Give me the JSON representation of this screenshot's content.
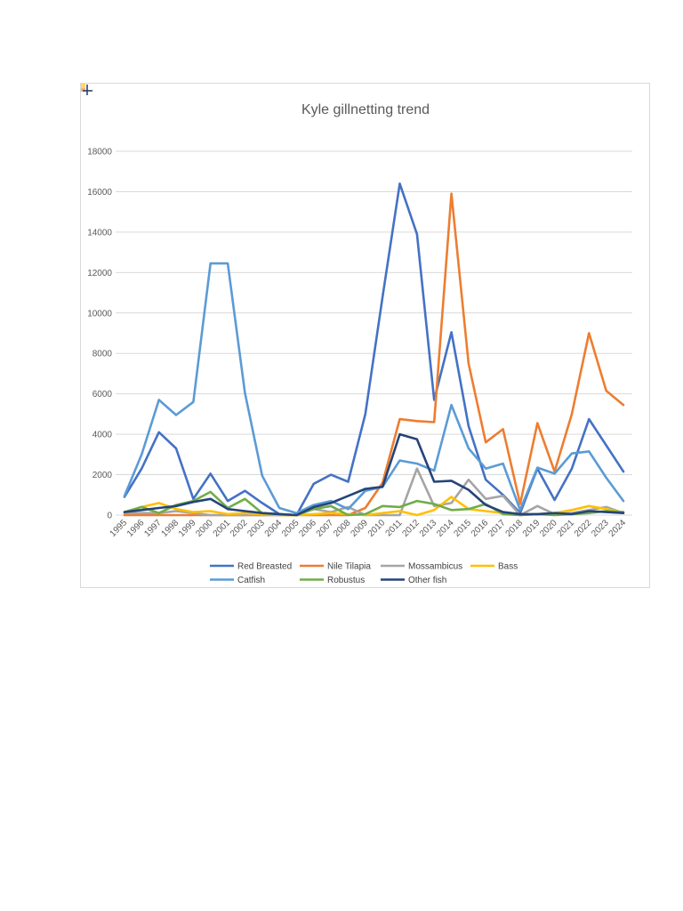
{
  "chart_data": {
    "type": "line",
    "title": "Kyle gillnetting trend",
    "xlabel": "",
    "ylabel": "",
    "ylim": [
      0,
      18000
    ],
    "yticks": [
      0,
      2000,
      4000,
      6000,
      8000,
      10000,
      12000,
      14000,
      16000,
      18000
    ],
    "grid": true,
    "legend_position": "bottom",
    "categories": [
      "1995",
      "1996",
      "1997",
      "1998",
      "1999",
      "2000",
      "2001",
      "2002",
      "2003",
      "2004",
      "2005",
      "2006",
      "2007",
      "2008",
      "2009",
      "2010",
      "2011",
      "2012",
      "2013",
      "2014",
      "2015",
      "2016",
      "2017",
      "2018",
      "2019",
      "2020",
      "2021",
      "2022",
      "2023",
      "2024"
    ],
    "series": [
      {
        "name": "Red Breasted",
        "color": "#4472c4",
        "values": [
          900,
          2300,
          4100,
          3300,
          800,
          2050,
          700,
          1200,
          600,
          50,
          0,
          1550,
          2000,
          1650,
          5000,
          10800,
          16400,
          13900,
          5700,
          9050,
          4400,
          1750,
          1000,
          100,
          2300,
          750,
          2300,
          4750,
          3450,
          2150
        ]
      },
      {
        "name": "Nile Tilapia",
        "color": "#ed7d31",
        "values": [
          0,
          0,
          0,
          0,
          0,
          0,
          0,
          0,
          0,
          0,
          0,
          0,
          0,
          0,
          350,
          1600,
          4750,
          4650,
          4600,
          15900,
          7500,
          3600,
          4250,
          550,
          4550,
          2150,
          5000,
          9000,
          6150,
          5450
        ]
      },
      {
        "name": "Mossambicus",
        "color": "#a5a5a5",
        "values": [
          100,
          100,
          100,
          200,
          100,
          0,
          0,
          0,
          0,
          0,
          0,
          300,
          150,
          400,
          0,
          0,
          0,
          2300,
          450,
          600,
          1750,
          800,
          950,
          0,
          450,
          50,
          100,
          250,
          400,
          100
        ]
      },
      {
        "name": "Bass",
        "color": "#ffc000",
        "values": [
          150,
          400,
          600,
          300,
          150,
          200,
          50,
          100,
          50,
          0,
          0,
          50,
          100,
          50,
          0,
          100,
          200,
          0,
          250,
          900,
          300,
          200,
          100,
          0,
          50,
          100,
          250,
          450,
          300,
          100
        ]
      },
      {
        "name": "Catfish",
        "color": "#5b9bd5",
        "values": [
          950,
          3000,
          5700,
          4950,
          5600,
          12450,
          12450,
          6050,
          1950,
          350,
          100,
          500,
          700,
          300,
          1200,
          1400,
          2700,
          2550,
          2200,
          5450,
          3300,
          2300,
          2550,
          250,
          2350,
          2050,
          3050,
          3150,
          1850,
          700
        ]
      },
      {
        "name": "Robustus",
        "color": "#70ad47",
        "values": [
          150,
          400,
          100,
          500,
          700,
          1150,
          350,
          800,
          100,
          50,
          0,
          300,
          450,
          0,
          50,
          450,
          400,
          700,
          550,
          250,
          300,
          550,
          50,
          0,
          50,
          0,
          50,
          100,
          200,
          150
        ]
      },
      {
        "name": "Other fish",
        "color": "#264478",
        "values": [
          150,
          250,
          350,
          450,
          650,
          800,
          300,
          200,
          100,
          50,
          0,
          400,
          600,
          950,
          1300,
          1400,
          4000,
          3750,
          1650,
          1700,
          1250,
          500,
          150,
          50,
          50,
          100,
          50,
          200,
          150,
          100
        ]
      }
    ]
  }
}
